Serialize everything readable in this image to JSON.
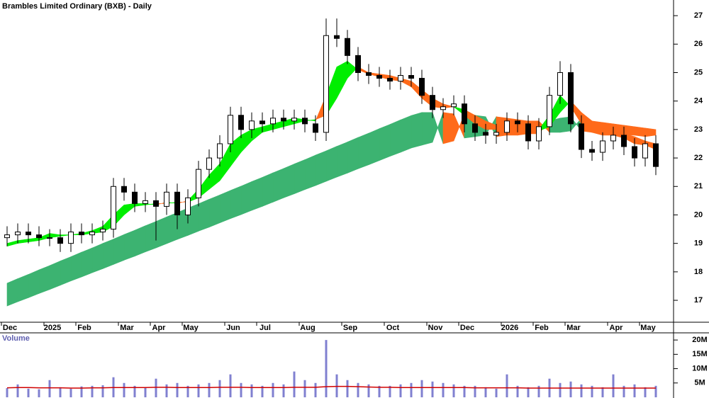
{
  "chart_data": [
    {
      "type": "candlestick",
      "title": "Brambles Limited Ordinary (BXB) - Daily",
      "categories": [
        "Dec",
        null,
        null,
        null,
        "2025",
        null,
        null,
        "Feb",
        null,
        null,
        null,
        "Mar",
        null,
        null,
        "Apr",
        null,
        null,
        "May",
        null,
        null,
        null,
        "Jun",
        null,
        null,
        "Jul",
        null,
        null,
        null,
        "Aug",
        null,
        null,
        null,
        "Sep",
        null,
        null,
        null,
        "Oct",
        null,
        null,
        null,
        "Nov",
        null,
        null,
        "Dec",
        null,
        null,
        null,
        "2026",
        null,
        null,
        "Feb",
        null,
        null,
        "Mar",
        null,
        null,
        null,
        "Apr",
        null,
        null,
        "May",
        null
      ],
      "open": [
        19.2,
        19.3,
        19.4,
        19.3,
        19.2,
        19.2,
        19.0,
        19.4,
        19.3,
        19.4,
        19.5,
        21.0,
        20.8,
        20.4,
        20.5,
        20.3,
        20.8,
        20.0,
        20.6,
        21.6,
        22.0,
        22.5,
        23.5,
        23.0,
        23.3,
        23.2,
        23.4,
        23.3,
        23.4,
        23.2,
        22.9,
        26.3,
        26.2,
        25.6,
        25.0,
        24.9,
        24.8,
        24.7,
        24.9,
        24.8,
        24.2,
        23.7,
        23.8,
        23.9,
        23.2,
        22.9,
        22.8,
        22.9,
        23.3,
        23.2,
        22.6,
        23.1,
        24.2,
        25.0,
        23.2,
        22.3,
        22.2,
        22.6,
        22.8,
        22.4,
        22.0,
        22.5
      ],
      "high": [
        19.6,
        19.7,
        19.7,
        19.6,
        19.5,
        19.5,
        19.7,
        19.7,
        19.7,
        19.8,
        21.3,
        21.3,
        21.1,
        20.8,
        20.8,
        21.1,
        21.1,
        20.9,
        21.9,
        22.3,
        22.8,
        23.8,
        23.8,
        23.6,
        23.6,
        23.7,
        23.7,
        23.7,
        23.7,
        23.5,
        26.9,
        26.9,
        26.5,
        25.9,
        25.3,
        25.2,
        25.1,
        25.2,
        25.2,
        25.1,
        24.5,
        24.1,
        24.2,
        24.2,
        23.5,
        23.2,
        23.2,
        23.6,
        23.6,
        23.5,
        23.4,
        24.5,
        25.4,
        25.3,
        23.5,
        22.6,
        22.9,
        23.1,
        23.1,
        22.7,
        22.8,
        22.8
      ],
      "low": [
        18.9,
        19.0,
        19.0,
        18.9,
        18.9,
        18.7,
        18.7,
        19.0,
        19.0,
        19.1,
        19.2,
        20.5,
        20.1,
        20.1,
        19.1,
        20.0,
        19.5,
        19.7,
        20.3,
        21.3,
        21.7,
        22.2,
        22.7,
        22.7,
        22.9,
        22.9,
        23.0,
        23.0,
        22.9,
        22.6,
        22.6,
        25.9,
        25.3,
        24.7,
        24.6,
        24.5,
        24.4,
        24.4,
        24.5,
        23.9,
        23.4,
        23.4,
        23.5,
        22.9,
        22.6,
        22.5,
        22.5,
        22.6,
        22.9,
        22.3,
        22.3,
        22.8,
        23.9,
        22.9,
        22.0,
        21.9,
        21.9,
        22.3,
        22.1,
        21.7,
        21.7,
        21.4
      ],
      "close": [
        19.3,
        19.4,
        19.3,
        19.2,
        19.2,
        19.0,
        19.4,
        19.3,
        19.4,
        19.5,
        21.0,
        20.8,
        20.4,
        20.5,
        20.3,
        20.8,
        20.0,
        20.6,
        21.6,
        22.0,
        22.5,
        23.5,
        23.0,
        23.3,
        23.2,
        23.4,
        23.3,
        23.4,
        23.2,
        22.9,
        26.3,
        26.2,
        25.6,
        25.0,
        24.9,
        24.8,
        24.7,
        24.9,
        24.8,
        24.2,
        23.7,
        23.8,
        23.9,
        23.2,
        22.9,
        22.8,
        22.9,
        23.3,
        23.2,
        22.6,
        23.1,
        24.2,
        25.0,
        23.2,
        22.3,
        22.2,
        22.6,
        22.8,
        22.4,
        22.0,
        22.5,
        21.7
      ],
      "bands": [
        {
          "up_color": "#3cb371",
          "down_color": "#ff6a1a",
          "fast": [
            17.6,
            17.76,
            17.91,
            18.07,
            18.22,
            18.38,
            18.53,
            18.69,
            18.84,
            19.0,
            19.15,
            19.31,
            19.46,
            19.62,
            19.77,
            19.93,
            20.08,
            20.24,
            20.39,
            20.55,
            20.7,
            20.86,
            21.01,
            21.17,
            21.32,
            21.48,
            21.63,
            21.79,
            21.94,
            22.1,
            22.25,
            22.41,
            22.56,
            22.72,
            22.87,
            23.03,
            23.18,
            23.34,
            23.49,
            23.6,
            23.6,
            22.5,
            22.6,
            23.55,
            23.5,
            23.45,
            22.75,
            22.8,
            22.8,
            22.85,
            22.85,
            23.3,
            23.4,
            23.45,
            22.95,
            22.9,
            22.9,
            22.85,
            22.8,
            22.8,
            22.75,
            22.8
          ],
          "slow": [
            16.8,
            16.95,
            17.09,
            17.24,
            17.38,
            17.53,
            17.68,
            17.82,
            17.97,
            18.11,
            18.26,
            18.41,
            18.55,
            18.7,
            18.84,
            18.99,
            19.14,
            19.28,
            19.43,
            19.57,
            19.72,
            19.87,
            20.01,
            20.16,
            20.3,
            20.45,
            20.6,
            20.74,
            20.89,
            21.03,
            21.18,
            21.33,
            21.47,
            21.62,
            21.76,
            21.91,
            22.06,
            22.2,
            22.35,
            22.45,
            22.55,
            23.6,
            23.55,
            22.7,
            22.75,
            22.8,
            23.45,
            23.4,
            23.35,
            23.3,
            23.3,
            22.9,
            22.9,
            22.95,
            23.4,
            23.3,
            23.25,
            23.2,
            23.15,
            23.1,
            23.05,
            23.0
          ]
        },
        {
          "up_color": "#00ee00",
          "down_color": "#ff6a1a",
          "fast": [
            19.0,
            19.1,
            19.15,
            19.2,
            19.35,
            19.3,
            19.3,
            19.35,
            19.45,
            19.6,
            20.0,
            20.35,
            20.4,
            20.4,
            20.35,
            20.45,
            20.4,
            20.5,
            20.9,
            21.4,
            21.8,
            22.5,
            22.8,
            23.0,
            23.1,
            23.2,
            23.3,
            23.4,
            23.35,
            23.3,
            24.2,
            25.2,
            25.4,
            25.1,
            24.95,
            24.85,
            24.75,
            24.7,
            24.5,
            24.1,
            23.8,
            23.75,
            23.8,
            23.5,
            23.2,
            23.0,
            23.0,
            23.05,
            23.0,
            22.9,
            23.0,
            23.5,
            24.2,
            23.8,
            23.2,
            22.9,
            22.8,
            22.8,
            22.7,
            22.5,
            22.45,
            22.3
          ],
          "slow": [
            18.9,
            19.0,
            19.05,
            19.1,
            19.2,
            19.25,
            19.3,
            19.3,
            19.35,
            19.4,
            19.6,
            20.0,
            20.3,
            20.35,
            20.4,
            20.4,
            20.45,
            20.45,
            20.6,
            20.9,
            21.2,
            21.7,
            22.2,
            22.6,
            22.9,
            23.0,
            23.1,
            23.2,
            23.3,
            23.35,
            23.5,
            24.1,
            24.8,
            25.2,
            25.0,
            24.95,
            24.9,
            24.8,
            24.7,
            24.4,
            24.1,
            23.9,
            23.8,
            23.7,
            23.5,
            23.3,
            23.15,
            23.1,
            23.05,
            23.0,
            22.95,
            23.1,
            23.6,
            24.0,
            23.6,
            23.3,
            23.05,
            22.9,
            22.85,
            22.75,
            22.6,
            22.5
          ]
        }
      ],
      "ylim": [
        16.23,
        27.55
      ],
      "yticks": [
        17,
        18,
        19,
        20,
        21,
        22,
        23,
        24,
        25,
        26,
        27
      ]
    },
    {
      "type": "bar",
      "title": "Volume",
      "color": "#8080d0",
      "ma_color": "#d00000",
      "values": [
        3200000.0,
        4500000.0,
        3000000.0,
        2800000.0,
        6000000.0,
        3500000.0,
        3000000.0,
        3800000.0,
        4000000.0,
        4200000.0,
        7000000.0,
        5000000.0,
        4000000.0,
        3500000.0,
        6500000.0,
        4500000.0,
        5000000.0,
        4000000.0,
        4500000.0,
        5000000.0,
        6000000.0,
        8000000.0,
        5000000.0,
        4500000.0,
        4000000.0,
        5000000.0,
        4500000.0,
        9000000.0,
        6000000.0,
        5000000.0,
        20000000.0,
        8000000.0,
        6000000.0,
        5000000.0,
        4500000.0,
        4000000.0,
        4000000.0,
        4500000.0,
        5000000.0,
        6000000.0,
        5500000.0,
        5000000.0,
        4500000.0,
        4000000.0,
        4000000.0,
        3500000.0,
        3000000.0,
        8000000.0,
        4000000.0,
        3500000.0,
        4000000.0,
        6500000.0,
        5000000.0,
        5500000.0,
        4500000.0,
        4000000.0,
        3500000.0,
        8000000.0,
        4000000.0,
        4500000.0,
        3500000.0,
        4000000.0
      ],
      "ma": [
        3300000.0,
        3400000.0,
        3400000.0,
        3300000.0,
        3300000.0,
        3300000.0,
        3200000.0,
        3200000.0,
        3300000.0,
        3300000.0,
        3400000.0,
        3400000.0,
        3400000.0,
        3400000.0,
        3500000.0,
        3500000.0,
        3400000.0,
        3400000.0,
        3400000.0,
        3400000.0,
        3500000.0,
        3500000.0,
        3500000.0,
        3400000.0,
        3400000.0,
        3400000.0,
        3400000.0,
        3500000.0,
        3500000.0,
        3500000.0,
        3700000.0,
        3800000.0,
        3800000.0,
        3700000.0,
        3600000.0,
        3500000.0,
        3500000.0,
        3400000.0,
        3400000.0,
        3400000.0,
        3400000.0,
        3400000.0,
        3400000.0,
        3400000.0,
        3300000.0,
        3300000.0,
        3300000.0,
        3300000.0,
        3300000.0,
        3200000.0,
        3200000.0,
        3200000.0,
        3200000.0,
        3200000.0,
        3200000.0,
        3200000.0,
        3200000.0,
        3200000.0,
        3200000.0,
        3200000.0,
        3200000.0,
        3200000.0
      ],
      "ylim": [
        0,
        22500000
      ],
      "yticks": [
        {
          "value": 5000000,
          "label": "5M"
        },
        {
          "value": 10000000,
          "label": "10M"
        },
        {
          "value": 15000000,
          "label": "15M"
        },
        {
          "value": 20000000,
          "label": "20M"
        }
      ]
    }
  ]
}
